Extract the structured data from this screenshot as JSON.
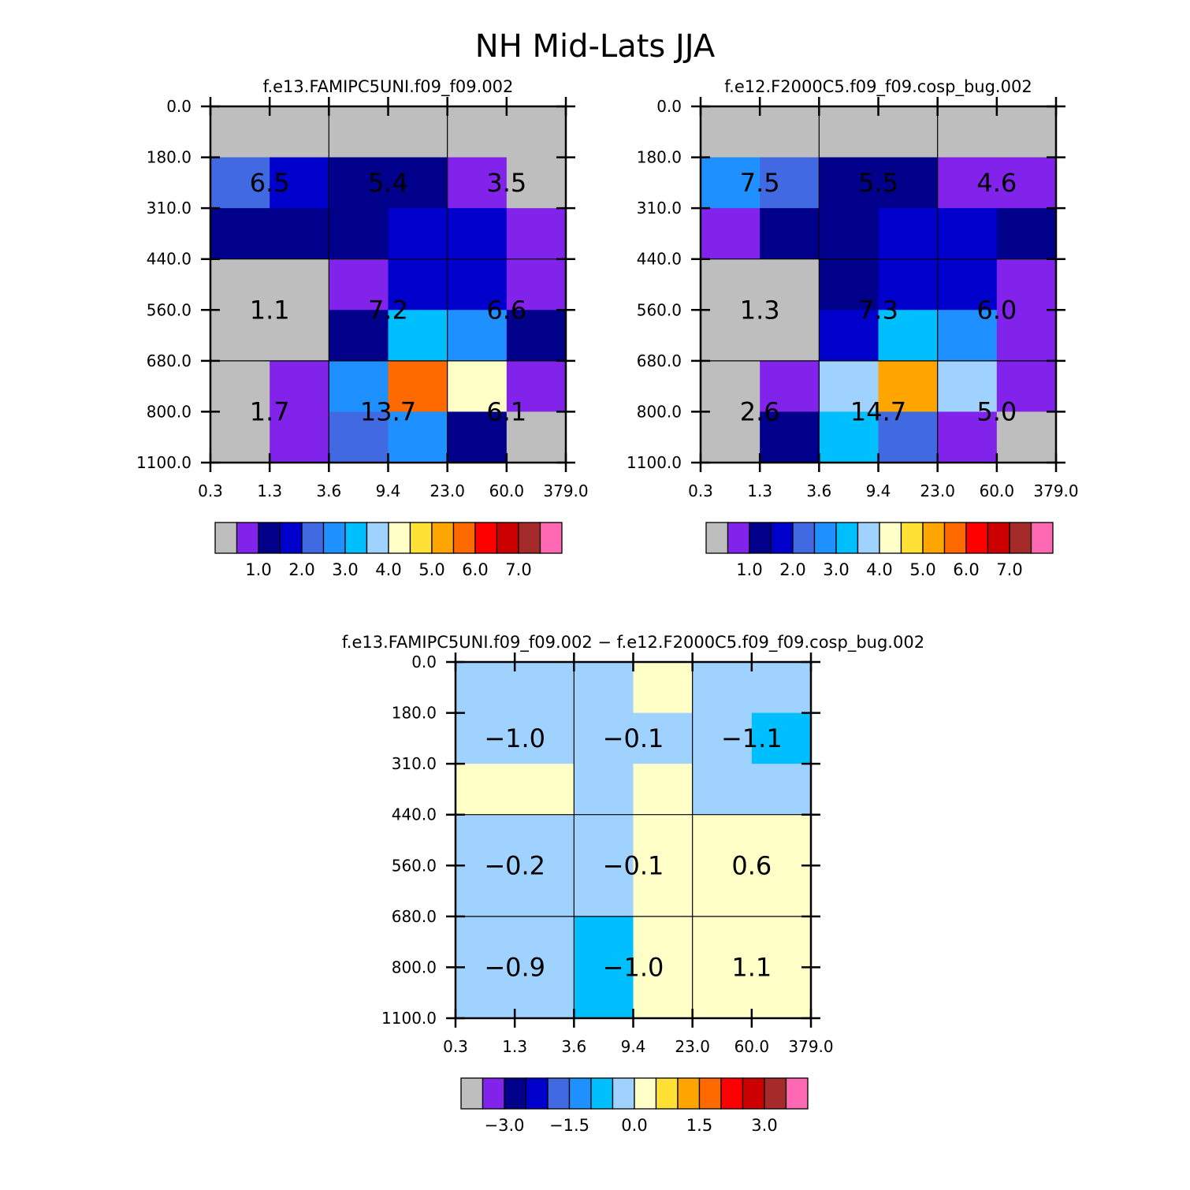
{
  "figure_title": "NH Mid-Lats JJA",
  "chart_data": [
    {
      "type": "heatmap",
      "title": "f.e13.FAMIPC5UNI.f09_f09.002",
      "x_tick_labels": [
        "0.3",
        "1.3",
        "3.6",
        "9.4",
        "23.0",
        "60.0",
        "379.0"
      ],
      "y_tick_labels": [
        "0.0",
        "180.0",
        "310.0",
        "440.0",
        "560.0",
        "680.0",
        "800.0",
        "1100.0"
      ],
      "cells": [
        [
          0,
          0,
          0,
          0,
          0,
          0
        ],
        [
          4,
          3,
          2,
          2,
          1,
          0
        ],
        [
          2,
          2,
          2,
          3,
          3,
          1
        ],
        [
          0,
          0,
          1,
          3,
          3,
          1
        ],
        [
          0,
          0,
          2,
          6,
          5,
          2
        ],
        [
          0,
          1,
          5,
          11,
          8,
          1
        ],
        [
          0,
          1,
          4,
          5,
          2,
          0
        ]
      ],
      "box_labels": [
        [
          "6.5",
          "5.4",
          "3.5"
        ],
        [
          "1.1",
          "7.2",
          "6.6"
        ],
        [
          "1.7",
          "13.7",
          "6.1"
        ]
      ],
      "colorbar_labels": [
        "1.0",
        "2.0",
        "3.0",
        "4.0",
        "5.0",
        "6.0",
        "7.0"
      ]
    },
    {
      "type": "heatmap",
      "title": "f.e12.F2000C5.f09_f09.cosp_bug.002",
      "x_tick_labels": [
        "0.3",
        "1.3",
        "3.6",
        "9.4",
        "23.0",
        "60.0",
        "379.0"
      ],
      "y_tick_labels": [
        "0.0",
        "180.0",
        "310.0",
        "440.0",
        "560.0",
        "680.0",
        "800.0",
        "1100.0"
      ],
      "cells": [
        [
          0,
          0,
          0,
          0,
          0,
          0
        ],
        [
          5,
          4,
          2,
          2,
          1,
          1
        ],
        [
          1,
          2,
          2,
          3,
          3,
          2
        ],
        [
          0,
          0,
          2,
          3,
          3,
          1
        ],
        [
          0,
          0,
          3,
          6,
          5,
          1
        ],
        [
          0,
          1,
          7,
          10,
          7,
          1
        ],
        [
          0,
          2,
          6,
          4,
          1,
          0
        ]
      ],
      "box_labels": [
        [
          "7.5",
          "5.5",
          "4.6"
        ],
        [
          "1.3",
          "7.3",
          "6.0"
        ],
        [
          "2.6",
          "14.7",
          "5.0"
        ]
      ],
      "colorbar_labels": [
        "1.0",
        "2.0",
        "3.0",
        "4.0",
        "5.0",
        "6.0",
        "7.0"
      ]
    },
    {
      "type": "heatmap",
      "title": "f.e13.FAMIPC5UNI.f09_f09.002 − f.e12.F2000C5.f09_f09.cosp_bug.002",
      "x_tick_labels": [
        "0.3",
        "1.3",
        "3.6",
        "9.4",
        "23.0",
        "60.0",
        "379.0"
      ],
      "y_tick_labels": [
        "0.0",
        "180.0",
        "310.0",
        "440.0",
        "560.0",
        "680.0",
        "800.0",
        "1100.0"
      ],
      "cells": [
        [
          7,
          7,
          7,
          8,
          7,
          7
        ],
        [
          7,
          7,
          7,
          7,
          7,
          6
        ],
        [
          8,
          8,
          7,
          8,
          7,
          7
        ],
        [
          7,
          7,
          7,
          8,
          8,
          8
        ],
        [
          7,
          7,
          7,
          8,
          8,
          8
        ],
        [
          7,
          7,
          6,
          8,
          8,
          8
        ],
        [
          7,
          7,
          6,
          8,
          8,
          8
        ]
      ],
      "box_labels": [
        [
          "−1.0",
          "−0.1",
          "−1.1"
        ],
        [
          "−0.2",
          "−0.1",
          "0.6"
        ],
        [
          "−0.9",
          "−1.0",
          "1.1"
        ]
      ],
      "colorbar_labels": [
        "−3.0",
        "−1.5",
        "0.0",
        "1.5",
        "3.0"
      ]
    }
  ],
  "palette": [
    "#bebebe",
    "#8223eb",
    "#00008b",
    "#0000cd",
    "#4169e1",
    "#1e90ff",
    "#00bfff",
    "#a0d2ff",
    "#ffffc8",
    "#ffe135",
    "#ffa500",
    "#ff6a00",
    "#ff0000",
    "#cd0000",
    "#a52a2a",
    "#ff69b4"
  ]
}
